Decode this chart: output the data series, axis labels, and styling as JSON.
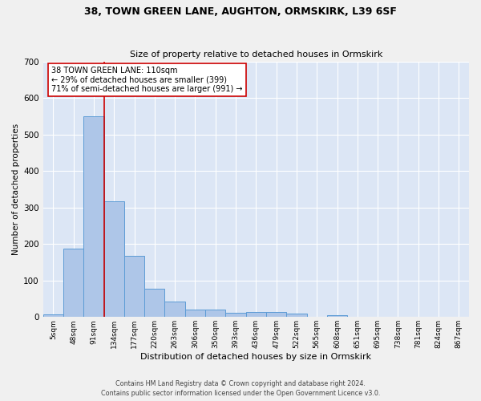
{
  "title1": "38, TOWN GREEN LANE, AUGHTON, ORMSKIRK, L39 6SF",
  "title2": "Size of property relative to detached houses in Ormskirk",
  "xlabel": "Distribution of detached houses by size in Ormskirk",
  "ylabel": "Number of detached properties",
  "bar_labels": [
    "5sqm",
    "48sqm",
    "91sqm",
    "134sqm",
    "177sqm",
    "220sqm",
    "263sqm",
    "306sqm",
    "350sqm",
    "393sqm",
    "436sqm",
    "479sqm",
    "522sqm",
    "565sqm",
    "608sqm",
    "651sqm",
    "695sqm",
    "738sqm",
    "781sqm",
    "824sqm",
    "867sqm"
  ],
  "bar_values": [
    8,
    187,
    549,
    317,
    167,
    77,
    42,
    20,
    20,
    12,
    13,
    14,
    9,
    0,
    6,
    0,
    0,
    0,
    0,
    0,
    0
  ],
  "bar_color": "#aec6e8",
  "bar_edge_color": "#5b9bd5",
  "background_color": "#dce6f5",
  "grid_color": "#ffffff",
  "vline_x": 2.5,
  "vline_color": "#cc0000",
  "annotation_text": "38 TOWN GREEN LANE: 110sqm\n← 29% of detached houses are smaller (399)\n71% of semi-detached houses are larger (991) →",
  "annotation_box_color": "#ffffff",
  "annotation_box_edge": "#cc0000",
  "footer1": "Contains HM Land Registry data © Crown copyright and database right 2024.",
  "footer2": "Contains public sector information licensed under the Open Government Licence v3.0.",
  "ylim": [
    0,
    700
  ],
  "yticks": [
    0,
    100,
    200,
    300,
    400,
    500,
    600,
    700
  ]
}
